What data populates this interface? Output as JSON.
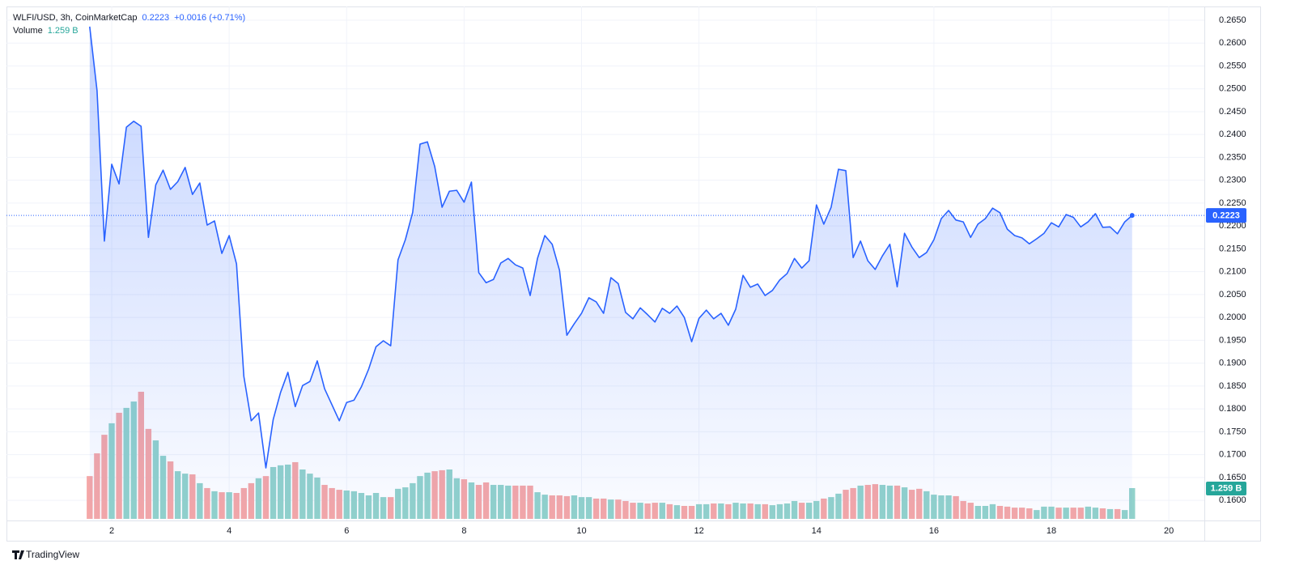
{
  "chart_data": {
    "type": "area",
    "title": "WLFI/USD, 3h, CoinMarketCap",
    "change": "+0.0016 (+0.71%)",
    "color": "#2962ff",
    "grid": true,
    "x": [
      1.625,
      1.75,
      1.875,
      2,
      2.125,
      2.25,
      2.375,
      2.5,
      2.625,
      2.75,
      2.875,
      3,
      3.125,
      3.25,
      3.375,
      3.5,
      3.625,
      3.75,
      3.875,
      4,
      4.125,
      4.25,
      4.375,
      4.5,
      4.625,
      4.75,
      4.875,
      5,
      5.125,
      5.25,
      5.375,
      5.5,
      5.625,
      5.75,
      5.875,
      6,
      6.125,
      6.25,
      6.375,
      6.5,
      6.625,
      6.75,
      6.875,
      7,
      7.125,
      7.25,
      7.375,
      7.5,
      7.625,
      7.75,
      7.875,
      8,
      8.125,
      8.25,
      8.375,
      8.5,
      8.625,
      8.75,
      8.875,
      9,
      9.125,
      9.25,
      9.375,
      9.5,
      9.625,
      9.75,
      9.875,
      10,
      10.125,
      10.25,
      10.375,
      10.5,
      10.625,
      10.75,
      10.875,
      11,
      11.125,
      11.25,
      11.375,
      11.5,
      11.625,
      11.75,
      11.875,
      12,
      12.125,
      12.25,
      12.375,
      12.5,
      12.625,
      12.75,
      12.875,
      13,
      13.125,
      13.25,
      13.375,
      13.5,
      13.625,
      13.75,
      13.875,
      14,
      14.125,
      14.25,
      14.375,
      14.5,
      14.625,
      14.75,
      14.875,
      15,
      15.125,
      15.25,
      15.375,
      15.5,
      15.625,
      15.75,
      15.875,
      16,
      16.125,
      16.25,
      16.375,
      16.5,
      16.625,
      16.75,
      16.875,
      17,
      17.125,
      17.25,
      17.375,
      17.5,
      17.625,
      17.75,
      17.875,
      18,
      18.125,
      18.25,
      18.375,
      18.5,
      18.625,
      18.75,
      18.875,
      19,
      19.125,
      19.25,
      19.375
    ],
    "values": [
      0.2636,
      0.2496,
      0.2167,
      0.2335,
      0.2292,
      0.2416,
      0.2429,
      0.2418,
      0.2175,
      0.229,
      0.2322,
      0.228,
      0.2297,
      0.2328,
      0.2269,
      0.2294,
      0.2202,
      0.2211,
      0.214,
      0.2179,
      0.2117,
      0.1871,
      0.1774,
      0.1791,
      0.1671,
      0.1777,
      0.1836,
      0.188,
      0.1805,
      0.1851,
      0.186,
      0.1905,
      0.1844,
      0.1809,
      0.1774,
      0.1814,
      0.1819,
      0.1848,
      0.1887,
      0.1936,
      0.1949,
      0.1938,
      0.2126,
      0.217,
      0.223,
      0.2379,
      0.2384,
      0.233,
      0.2241,
      0.2276,
      0.2278,
      0.2252,
      0.2296,
      0.2098,
      0.2076,
      0.2083,
      0.2119,
      0.2129,
      0.2115,
      0.2108,
      0.2048,
      0.2129,
      0.2179,
      0.216,
      0.2103,
      0.1961,
      0.1986,
      0.2009,
      0.2043,
      0.2034,
      0.2009,
      0.2087,
      0.2074,
      0.2011,
      0.1997,
      0.2021,
      0.2006,
      0.199,
      0.202,
      0.2009,
      0.2025,
      0.2,
      0.1947,
      0.1998,
      0.2016,
      0.1997,
      0.2009,
      0.1983,
      0.2018,
      0.2092,
      0.2066,
      0.2073,
      0.2048,
      0.2059,
      0.2082,
      0.2096,
      0.2129,
      0.2108,
      0.2124,
      0.2246,
      0.2204,
      0.2241,
      0.2324,
      0.2321,
      0.2131,
      0.2167,
      0.2124,
      0.2105,
      0.2135,
      0.216,
      0.2067,
      0.2184,
      0.2154,
      0.2131,
      0.2142,
      0.217,
      0.2216,
      0.2234,
      0.2213,
      0.2209,
      0.2175,
      0.2204,
      0.2216,
      0.2239,
      0.2229,
      0.2193,
      0.2179,
      0.2174,
      0.2161,
      0.2172,
      0.2184,
      0.2207,
      0.2198,
      0.2225,
      0.2219,
      0.2198,
      0.2209,
      0.2227,
      0.2197,
      0.2198,
      0.2183,
      0.2209,
      0.2223
    ],
    "volume": {
      "name": "Volume",
      "last_label": "1.259 B",
      "up_color": "#92d2cb",
      "down_color": "#f5a7a7",
      "label_color": "#26a69a",
      "values": [
        1.75,
        2.68,
        3.44,
        3.91,
        4.34,
        4.54,
        4.8,
        5.2,
        3.68,
        3.21,
        2.58,
        2.35,
        1.95,
        1.85,
        1.82,
        1.46,
        1.26,
        1.13,
        1.09,
        1.09,
        1.06,
        1.26,
        1.46,
        1.66,
        1.75,
        2.12,
        2.19,
        2.22,
        2.32,
        2.02,
        1.85,
        1.69,
        1.39,
        1.26,
        1.19,
        1.16,
        1.13,
        1.06,
        0.96,
        1.06,
        0.89,
        0.89,
        1.23,
        1.29,
        1.46,
        1.75,
        1.89,
        1.95,
        1.99,
        2.02,
        1.66,
        1.62,
        1.49,
        1.39,
        1.49,
        1.39,
        1.39,
        1.36,
        1.36,
        1.36,
        1.36,
        1.09,
        0.99,
        0.96,
        0.96,
        0.93,
        0.96,
        0.89,
        0.89,
        0.83,
        0.83,
        0.79,
        0.79,
        0.73,
        0.66,
        0.66,
        0.63,
        0.66,
        0.66,
        0.6,
        0.56,
        0.53,
        0.53,
        0.6,
        0.6,
        0.63,
        0.63,
        0.6,
        0.66,
        0.63,
        0.63,
        0.6,
        0.6,
        0.56,
        0.6,
        0.63,
        0.73,
        0.66,
        0.66,
        0.73,
        0.83,
        0.89,
        1.03,
        1.19,
        1.26,
        1.36,
        1.39,
        1.42,
        1.39,
        1.36,
        1.36,
        1.29,
        1.19,
        1.23,
        1.13,
        0.99,
        0.96,
        0.96,
        0.93,
        0.73,
        0.66,
        0.53,
        0.53,
        0.6,
        0.53,
        0.5,
        0.46,
        0.46,
        0.43,
        0.36,
        0.5,
        0.5,
        0.46,
        0.46,
        0.46,
        0.46,
        0.5,
        0.46,
        0.43,
        0.4,
        0.4,
        0.36,
        1.259
      ]
    },
    "xlim": [
      0.208,
      20.605
    ],
    "xticks": [
      2,
      4,
      6,
      8,
      10,
      12,
      14,
      16,
      18,
      20
    ],
    "ylim": [
      0.1556,
      0.268
    ],
    "yticks": [
      {
        "value": 0.16,
        "label": "0.1600"
      },
      {
        "value": 0.165,
        "label": "0.1650"
      },
      {
        "value": 0.17,
        "label": "0.1700"
      },
      {
        "value": 0.175,
        "label": "0.1750"
      },
      {
        "value": 0.18,
        "label": "0.1800"
      },
      {
        "value": 0.185,
        "label": "0.1850"
      },
      {
        "value": 0.19,
        "label": "0.1900"
      },
      {
        "value": 0.195,
        "label": "0.1950"
      },
      {
        "value": 0.2,
        "label": "0.2000"
      },
      {
        "value": 0.205,
        "label": "0.2050"
      },
      {
        "value": 0.21,
        "label": "0.2100"
      },
      {
        "value": 0.215,
        "label": "0.2150"
      },
      {
        "value": 0.22,
        "label": "0.2200"
      },
      {
        "value": 0.225,
        "label": "0.2250"
      },
      {
        "value": 0.23,
        "label": "0.2300"
      },
      {
        "value": 0.235,
        "label": "0.2350"
      },
      {
        "value": 0.24,
        "label": "0.2400"
      },
      {
        "value": 0.245,
        "label": "0.2450"
      },
      {
        "value": 0.25,
        "label": "0.2500"
      },
      {
        "value": 0.255,
        "label": "0.2550"
      },
      {
        "value": 0.26,
        "label": "0.2600"
      },
      {
        "value": 0.265,
        "label": "0.2650"
      }
    ]
  },
  "brand": "TradingView"
}
